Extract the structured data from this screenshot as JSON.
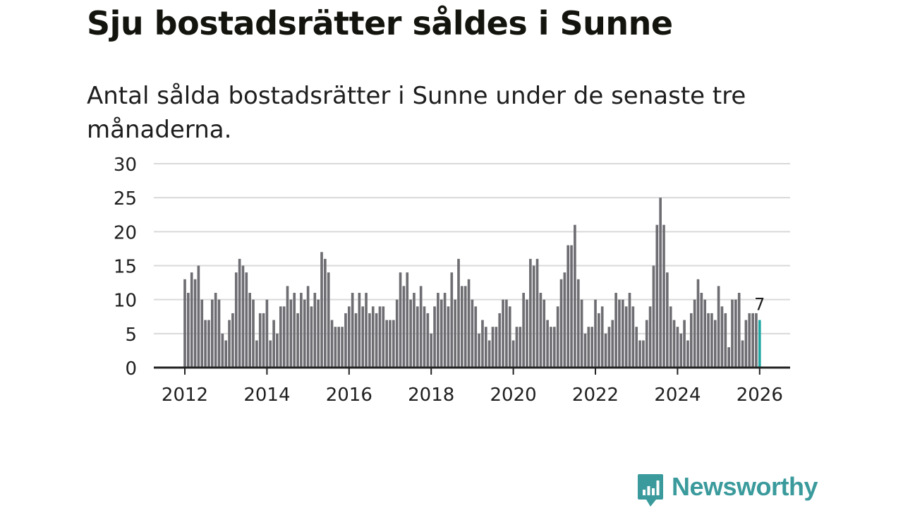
{
  "title": "Sju bostadsrätter såldes i Sunne",
  "subtitle": "Antal sålda bostadsrätter i Sunne under de senaste tre månaderna.",
  "brand": {
    "name": "Newsworthy",
    "icon": "newsworthy-logo-icon"
  },
  "colors": {
    "bar": "#6e6d72",
    "highlight": "#1fa8a4",
    "grid": "#d9d9d9",
    "axis": "#222222",
    "brand": "#3a9a9c"
  },
  "chart_data": {
    "type": "bar",
    "title": "Sju bostadsrätter såldes i Sunne",
    "xlabel": "",
    "ylabel": "",
    "ylim": [
      0,
      30
    ],
    "yticks": [
      0,
      5,
      10,
      15,
      20,
      25,
      30
    ],
    "xticks": [
      "2012",
      "2014",
      "2016",
      "2018",
      "2020",
      "2022",
      "2024",
      "2026"
    ],
    "first_month": "2012-01",
    "grid": true,
    "legend": "none",
    "highlight_last": true,
    "last_value_label": "7",
    "values": [
      13,
      11,
      14,
      13,
      15,
      10,
      7,
      7,
      10,
      11,
      10,
      5,
      4,
      7,
      8,
      14,
      16,
      15,
      14,
      11,
      10,
      4,
      8,
      8,
      10,
      4,
      7,
      5,
      9,
      9,
      12,
      10,
      11,
      8,
      11,
      10,
      12,
      9,
      11,
      10,
      17,
      16,
      14,
      7,
      6,
      6,
      6,
      8,
      9,
      11,
      8,
      11,
      9,
      11,
      8,
      9,
      8,
      9,
      9,
      7,
      7,
      7,
      10,
      14,
      12,
      14,
      10,
      11,
      9,
      12,
      9,
      8,
      5,
      9,
      11,
      10,
      11,
      9,
      14,
      10,
      16,
      12,
      12,
      13,
      10,
      9,
      5,
      7,
      6,
      4,
      6,
      6,
      8,
      10,
      10,
      9,
      4,
      6,
      6,
      11,
      10,
      16,
      15,
      16,
      11,
      10,
      7,
      6,
      6,
      9,
      13,
      14,
      18,
      18,
      21,
      13,
      10,
      5,
      6,
      6,
      10,
      8,
      9,
      5,
      6,
      7,
      11,
      10,
      10,
      9,
      11,
      9,
      6,
      4,
      4,
      7,
      9,
      15,
      21,
      25,
      21,
      14,
      9,
      7,
      6,
      5,
      7,
      4,
      8,
      10,
      13,
      11,
      10,
      8,
      8,
      7,
      12,
      9,
      8,
      3,
      10,
      10,
      11,
      4,
      7,
      8,
      8,
      8,
      7
    ]
  }
}
